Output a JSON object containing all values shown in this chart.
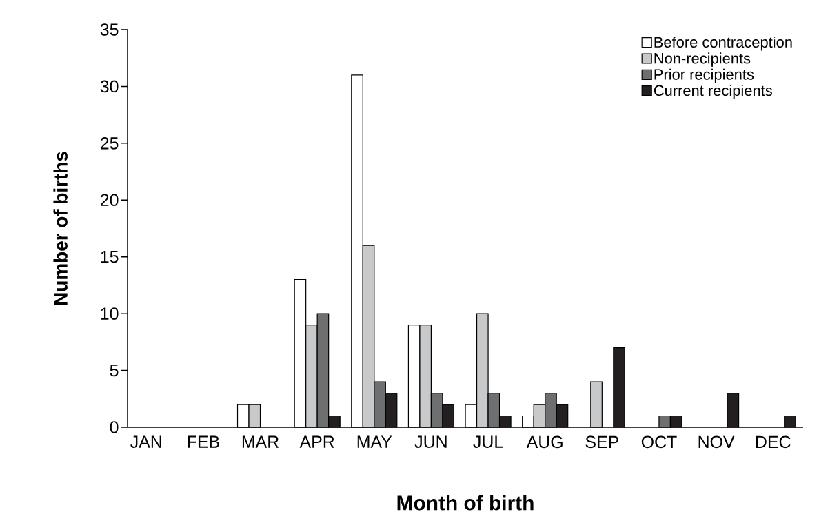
{
  "chart_data": {
    "type": "bar",
    "xlabel": "Month of birth",
    "ylabel": "Number of births",
    "categories": [
      "JAN",
      "FEB",
      "MAR",
      "APR",
      "MAY",
      "JUN",
      "JUL",
      "AUG",
      "SEP",
      "OCT",
      "NOV",
      "DEC"
    ],
    "series": [
      {
        "name": "Before contraception",
        "color": "#ffffff",
        "values": [
          0,
          0,
          2,
          13,
          31,
          9,
          2,
          1,
          0,
          0,
          0,
          0
        ]
      },
      {
        "name": "Non-recipients",
        "color": "#c8c9cb",
        "values": [
          0,
          0,
          2,
          9,
          16,
          9,
          10,
          2,
          4,
          0,
          0,
          0
        ]
      },
      {
        "name": "Prior recipients",
        "color": "#6e6f71",
        "values": [
          0,
          0,
          0,
          10,
          4,
          3,
          3,
          3,
          0,
          1,
          0,
          0
        ]
      },
      {
        "name": "Current recipients",
        "color": "#231f20",
        "values": [
          0,
          0,
          0,
          1,
          3,
          2,
          1,
          2,
          7,
          1,
          3,
          1
        ]
      }
    ],
    "ylim": [
      0,
      35
    ],
    "yticks": [
      0,
      5,
      10,
      15,
      20,
      25,
      30,
      35
    ],
    "legend": "top right"
  }
}
